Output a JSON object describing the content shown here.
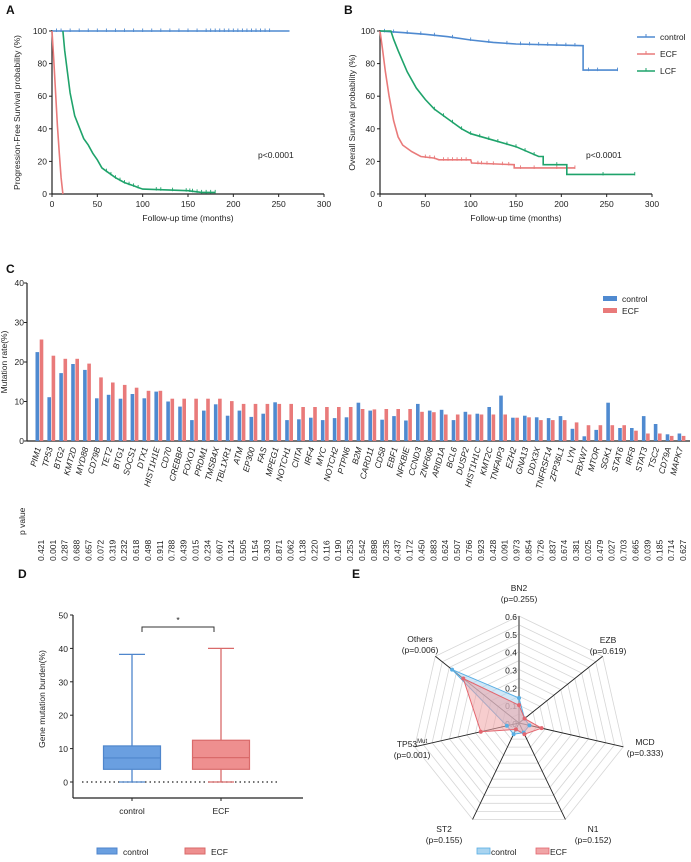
{
  "colors": {
    "control": "#4f8ad0",
    "ECF": "#e97a7a",
    "LCF": "#1fa36b",
    "axis": "#222222"
  },
  "chart_data": [
    {
      "panel": "A",
      "type": "line",
      "subtype": "kaplan-meier",
      "ylabel": "Progression-Free Survival probability (%)",
      "xlabel": "Follow-up time (months)",
      "xlim": [
        0,
        300
      ],
      "ylim": [
        0,
        100
      ],
      "xticks": [
        0,
        50,
        100,
        150,
        200,
        250,
        300
      ],
      "yticks": [
        0,
        20,
        40,
        60,
        80,
        100
      ],
      "annotation": "p<0.0001",
      "series": [
        {
          "key": "control",
          "points": [
            [
              0,
              100
            ],
            [
              262,
              100
            ]
          ],
          "censor": [
            5,
            10,
            20,
            30,
            40,
            50,
            60,
            70,
            80,
            90,
            100,
            110,
            120,
            130,
            140,
            150,
            160,
            170,
            175,
            180,
            185,
            190,
            195,
            200,
            205,
            210,
            215,
            220,
            225,
            230,
            235,
            240
          ]
        },
        {
          "key": "ECF",
          "points": [
            [
              0,
              100
            ],
            [
              2,
              82
            ],
            [
              4,
              62
            ],
            [
              6,
              42
            ],
            [
              8,
              25
            ],
            [
              10,
              10
            ],
            [
              12,
              0
            ]
          ],
          "censor": []
        },
        {
          "key": "LCF",
          "points": [
            [
              12,
              100
            ],
            [
              14,
              88
            ],
            [
              17,
              75
            ],
            [
              20,
              62
            ],
            [
              25,
              48
            ],
            [
              30,
              41
            ],
            [
              35,
              34
            ],
            [
              40,
              30
            ],
            [
              45,
              25
            ],
            [
              50,
              21
            ],
            [
              55,
              16
            ],
            [
              60,
              14
            ],
            [
              70,
              10
            ],
            [
              80,
              7
            ],
            [
              90,
              5
            ],
            [
              95,
              4
            ],
            [
              100,
              3
            ],
            [
              150,
              2
            ],
            [
              165,
              1
            ],
            [
              180,
              1
            ]
          ],
          "censor": [
            60,
            65,
            70,
            75,
            80,
            85,
            90,
            95,
            115,
            120,
            133,
            148,
            152,
            155,
            160,
            165,
            170,
            175,
            180
          ]
        }
      ]
    },
    {
      "panel": "B",
      "type": "line",
      "subtype": "kaplan-meier",
      "ylabel": "Overall Survival probability (%)",
      "xlabel": "Follow-up time (months)",
      "xlim": [
        0,
        300
      ],
      "ylim": [
        0,
        100
      ],
      "xticks": [
        0,
        50,
        100,
        150,
        200,
        250,
        300
      ],
      "yticks": [
        0,
        20,
        40,
        60,
        80,
        100
      ],
      "annotation": "p<0.0001",
      "legend_position": "top-right",
      "series": [
        {
          "key": "control",
          "name": "control",
          "points": [
            [
              0,
              100
            ],
            [
              25,
              99
            ],
            [
              50,
              98
            ],
            [
              75,
              96.5
            ],
            [
              100,
              94.5
            ],
            [
              125,
              93
            ],
            [
              150,
              92
            ],
            [
              224,
              91
            ],
            [
              224,
              76
            ],
            [
              262,
              76
            ]
          ],
          "censor": [
            5,
            15,
            30,
            45,
            60,
            80,
            100,
            120,
            140,
            155,
            165,
            175,
            185,
            195,
            205,
            215,
            230,
            240,
            262
          ]
        },
        {
          "key": "ECF",
          "name": "ECF",
          "points": [
            [
              0,
              100
            ],
            [
              3,
              88
            ],
            [
              6,
              75
            ],
            [
              10,
              60
            ],
            [
              15,
              45
            ],
            [
              20,
              35
            ],
            [
              25,
              30
            ],
            [
              35,
              26
            ],
            [
              45,
              23
            ],
            [
              60,
              22
            ],
            [
              65,
              21
            ],
            [
              100,
              21
            ],
            [
              101,
              19
            ],
            [
              148,
              18
            ],
            [
              148,
              16
            ],
            [
              215,
              16
            ]
          ],
          "censor": [
            50,
            55,
            60,
            70,
            75,
            80,
            85,
            90,
            95,
            108,
            112,
            118,
            125,
            135,
            142,
            155,
            170,
            195,
            215
          ]
        },
        {
          "key": "LCF",
          "name": "LCF",
          "points": [
            [
              0,
              100
            ],
            [
              12,
              100
            ],
            [
              15,
              95
            ],
            [
              20,
              88
            ],
            [
              30,
              75
            ],
            [
              40,
              65
            ],
            [
              50,
              58
            ],
            [
              60,
              52
            ],
            [
              75,
              46
            ],
            [
              90,
              40
            ],
            [
              100,
              37
            ],
            [
              125,
              33
            ],
            [
              150,
              29
            ],
            [
              175,
              23
            ],
            [
              180,
              23
            ],
            [
              180,
              18
            ],
            [
              206,
              18
            ],
            [
              206,
              12
            ],
            [
              281,
              12
            ]
          ],
          "censor": [
            60,
            70,
            80,
            90,
            100,
            110,
            120,
            130,
            140,
            150,
            160,
            170,
            195,
            246,
            281
          ]
        }
      ]
    },
    {
      "panel": "C",
      "type": "bar",
      "ylabel": "Mutation rate(%)",
      "ylim": [
        0,
        40
      ],
      "yticks": [
        0,
        10,
        20,
        30,
        40
      ],
      "legend_position": "top-right",
      "pvalue_label": "p value",
      "categories": [
        "PIM1",
        "TP53",
        "BTG2",
        "KMT2D",
        "MYD88",
        "CD79B",
        "TET2",
        "BTG1",
        "SOCS1",
        "DTX1",
        "HIST1H1E",
        "CD70",
        "CREBBP",
        "FOXO1",
        "PRDM1",
        "TMSB4X",
        "TBL1XR1",
        "ATM",
        "EP300",
        "FAS",
        "MPEG1",
        "NOTCH1",
        "CIITA",
        "IRF4",
        "MYC",
        "NOTCH2",
        "PTPN6",
        "B2M",
        "CARD11",
        "CD58",
        "EBF1",
        "NFKBIE",
        "CCND3",
        "ZNF608",
        "ARID1A",
        "BCL6",
        "DUSP2",
        "HIST1H1C",
        "KMT2C",
        "TNFAIP3",
        "EZH2",
        "GNA13",
        "DDX3X",
        "TNFRSF14",
        "ZFP36L1",
        "LYN",
        "FBXW7",
        "MTOR",
        "SGK1",
        "STAT6",
        "IRF8",
        "STAT3",
        "TSC2",
        "CD79A",
        "MAPK7"
      ],
      "series": [
        {
          "key": "control",
          "name": "control",
          "values": [
            22.5,
            11.1,
            17.2,
            19.5,
            18.0,
            10.8,
            11.7,
            10.7,
            11.9,
            10.8,
            12.5,
            10.0,
            8.7,
            5.3,
            7.7,
            9.3,
            6.4,
            7.7,
            6.1,
            6.9,
            9.8,
            5.3,
            5.5,
            5.9,
            5.3,
            5.8,
            6.0,
            9.7,
            7.7,
            5.4,
            6.3,
            5.2,
            9.4,
            7.7,
            7.9,
            5.3,
            7.4,
            6.9,
            8.6,
            11.5,
            5.9,
            6.4,
            6.0,
            5.8,
            6.3,
            3.1,
            1.2,
            2.8,
            9.7,
            3.3,
            3.3,
            6.3,
            4.3,
            1.7,
            1.9
          ]
        },
        {
          "key": "ECF",
          "name": "ECF",
          "values": [
            25.7,
            21.6,
            20.8,
            20.8,
            19.6,
            16.1,
            14.8,
            14.2,
            13.5,
            12.7,
            12.7,
            10.7,
            10.7,
            10.7,
            10.7,
            10.7,
            10.1,
            9.4,
            9.4,
            9.4,
            9.4,
            9.4,
            8.6,
            8.6,
            8.6,
            8.6,
            8.6,
            8.1,
            8.0,
            8.1,
            8.1,
            8.1,
            7.4,
            7.3,
            6.7,
            6.7,
            6.7,
            6.7,
            6.7,
            6.7,
            5.9,
            6.0,
            5.3,
            5.3,
            5.3,
            4.7,
            4.0,
            4.0,
            4.0,
            4.0,
            2.6,
            1.9,
            1.9,
            1.3,
            1.3
          ]
        }
      ],
      "p_values": [
        "0.421",
        "0.001",
        "0.287",
        "0.688",
        "0.657",
        "0.072",
        "0.319",
        "0.232",
        "0.618",
        "0.498",
        "0.911",
        "0.788",
        "0.439",
        "0.015",
        "0.234",
        "0.607",
        "0.124",
        "0.505",
        "0.154",
        "0.303",
        "0.871",
        "0.062",
        "0.138",
        "0.220",
        "0.116",
        "0.190",
        "0.253",
        "0.542",
        "0.898",
        "0.235",
        "0.437",
        "0.172",
        "0.450",
        "0.883",
        "0.624",
        "0.507",
        "0.766",
        "0.923",
        "0.428",
        "0.091",
        "0.973",
        "0.854",
        "0.726",
        "0.837",
        "0.674",
        "0.381",
        "0.025",
        "0.479",
        "0.027",
        "0.703",
        "0.665",
        "0.039",
        "0.185",
        "0.714",
        "0.627"
      ]
    },
    {
      "panel": "D",
      "type": "box",
      "ylabel": "Gene mutation burden(%)",
      "ylim": [
        -5,
        50
      ],
      "yticks": [
        0,
        10,
        20,
        30,
        40,
        50
      ],
      "significance": "*",
      "legend_position": "bottom",
      "categories": [
        "control",
        "ECF"
      ],
      "boxes": [
        {
          "key": "control",
          "name": "control",
          "min": 0,
          "q1": 3.8,
          "median": 7.2,
          "q3": 10.8,
          "max": 38.2
        },
        {
          "key": "ECF",
          "name": "ECF",
          "min": 0,
          "q1": 3.8,
          "median": 7.3,
          "q3": 12.5,
          "max": 40
        }
      ],
      "reference_line": 0
    },
    {
      "panel": "E",
      "type": "radar",
      "rlim": [
        0,
        0.6
      ],
      "rticks": [
        "0.0",
        "0.1",
        "0.2",
        "0.3",
        "0.4",
        "0.5",
        "0.6"
      ],
      "legend_position": "bottom",
      "axes": [
        {
          "label": "BN2",
          "sup": "",
          "p": "(p=0.255)"
        },
        {
          "label": "EZB",
          "sup": "",
          "p": "(p=0.619)"
        },
        {
          "label": "MCD",
          "sup": "",
          "p": "(p=0.333)"
        },
        {
          "label": "N1",
          "sup": "",
          "p": "(p=0.152)"
        },
        {
          "label": "ST2",
          "sup": "",
          "p": "(p=0.155)"
        },
        {
          "label": "TP53",
          "sup": "Mut",
          "p": "(p=0.001)"
        },
        {
          "label": "Others",
          "sup": "",
          "p": "(p=0.006)"
        }
      ],
      "series": [
        {
          "key": "control",
          "name": "control",
          "values": [
            0.14,
            0.04,
            0.06,
            0.06,
            0.07,
            0.07,
            0.48
          ]
        },
        {
          "key": "ECF",
          "name": "ECF",
          "values": [
            0.1,
            0.04,
            0.13,
            0.07,
            0.04,
            0.22,
            0.4
          ]
        }
      ]
    }
  ]
}
